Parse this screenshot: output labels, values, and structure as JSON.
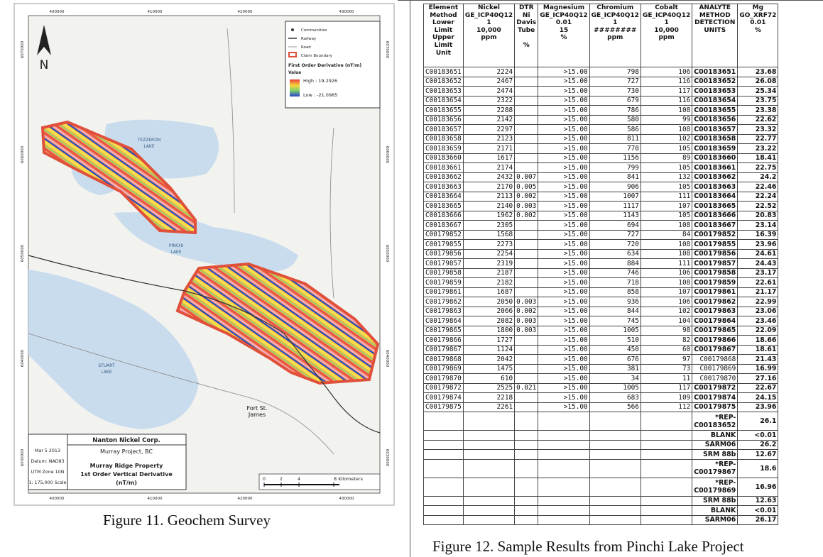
{
  "map": {
    "north": "N",
    "x_coords_top": [
      "400000",
      "410000",
      "420000",
      "430000"
    ],
    "x_coords_bottom": [
      "400000",
      "410000",
      "420000",
      "430000"
    ],
    "y_coords_left": [
      "6070000",
      "6060000",
      "6050000",
      "6040000",
      "6030000"
    ],
    "y_coords_right": [
      "6070000",
      "6060000",
      "6050000",
      "6040000",
      "6030000"
    ],
    "legend": {
      "items": [
        "Communities",
        "Railway",
        "Road",
        "Claim Boundary"
      ],
      "title": "First Order Derivative (nT/m)",
      "value": "Value",
      "high": "High : 19.2926",
      "low": "Low : -21.0985"
    },
    "lakes": {
      "tezzeron": [
        "TEZZERON",
        "LAKE"
      ],
      "pinchi": [
        "PINCHI",
        "LAKE"
      ],
      "stuart": [
        "STUART",
        "LAKE"
      ],
      "town": [
        "Fort St.",
        "James"
      ]
    },
    "title_block": {
      "company": "Nanton Nickel Corp.",
      "project": "Murray Project, BC",
      "property": "Murray Ridge Property",
      "product": "1st Order Vertical Derivative",
      "unit": "(nT/m)",
      "info": [
        "Mar 5 2013",
        "Datum: NAD83",
        "UTM Zone 10N",
        "1: 175,000 Scale"
      ]
    },
    "scale": [
      "0",
      "2",
      "4",
      "8 Kilometers"
    ]
  },
  "figure11_caption": "Figure 11. Geochem Survey",
  "table": {
    "header": [
      "Element\nMethod\nLower\nLimit\nUpper\nLimit\nUnit",
      "Nickel\nGE_ICP40Q12\n1\n10,000\nppm",
      "DTR\nNi\nDavis\nTube\n\n%",
      "Magnesium\nGE_ICP40Q12\n0.01\n15\n%",
      "Chromium\nGE_ICP40Q12\n1\n########\nppm",
      "Cobalt\nGE_ICP40Q12\n1\n10,000\nppm",
      "ANALYTE\nMETHOD\nDETECTION\nUNITS",
      "Mg\nGO_XRF72\n0.01\n%"
    ],
    "rows": [
      [
        "C00183651",
        "2224",
        "",
        ">15.00",
        "798",
        "106",
        "C00183651",
        "23.68"
      ],
      [
        "C00183652",
        "2467",
        "",
        ">15.00",
        "727",
        "116",
        "C00183652",
        "26.08"
      ],
      [
        "C00183653",
        "2474",
        "",
        ">15.00",
        "730",
        "117",
        "C00183653",
        "25.34"
      ],
      [
        "C00183654",
        "2322",
        "",
        ">15.00",
        "679",
        "116",
        "C00183654",
        "23.75"
      ],
      [
        "C00183655",
        "2288",
        "",
        ">15.00",
        "786",
        "108",
        "C00183655",
        "23.38"
      ],
      [
        "C00183656",
        "2142",
        "",
        ">15.00",
        "580",
        "99",
        "C00183656",
        "22.62"
      ],
      [
        "C00183657",
        "2297",
        "",
        ">15.00",
        "586",
        "108",
        "C00183657",
        "23.32"
      ],
      [
        "C00183658",
        "2123",
        "",
        ">15.00",
        "811",
        "102",
        "C00183658",
        "22.77"
      ],
      [
        "C00183659",
        "2171",
        "",
        ">15.00",
        "770",
        "105",
        "C00183659",
        "23.22"
      ],
      [
        "C00183660",
        "1617",
        "",
        ">15.00",
        "1156",
        "89",
        "C00183660",
        "18.41"
      ],
      [
        "C00183661",
        "2174",
        "",
        ">15.00",
        "799",
        "105",
        "C00183661",
        "22.75"
      ],
      [
        "C00183662",
        "2432",
        "0.007",
        ">15.00",
        "841",
        "132",
        "C00183662",
        "24.2"
      ],
      [
        "C00183663",
        "2170",
        "0.005",
        ">15.00",
        "906",
        "105",
        "C00183663",
        "22.46"
      ],
      [
        "C00183664",
        "2113",
        "0.002",
        ">15.00",
        "1007",
        "111",
        "C00183664",
        "22.24"
      ],
      [
        "C00183665",
        "2140",
        "0.003",
        ">15.00",
        "1117",
        "107",
        "C00183665",
        "22.52"
      ],
      [
        "C00183666",
        "1962",
        "0.002",
        ">15.00",
        "1143",
        "105",
        "C00183666",
        "20.83"
      ],
      [
        "C00183667",
        "2305",
        "",
        ">15.00",
        "694",
        "108",
        "C00183667",
        "23.14"
      ],
      [
        "C00179852",
        "1568",
        "",
        ">15.00",
        "727",
        "84",
        "C00179852",
        "16.39"
      ],
      [
        "C00179855",
        "2273",
        "",
        ">15.00",
        "720",
        "108",
        "C00179855",
        "23.96"
      ],
      [
        "C00179856",
        "2254",
        "",
        ">15.00",
        "634",
        "108",
        "C00179856",
        "24.61"
      ],
      [
        "C00179857",
        "2319",
        "",
        ">15.00",
        "884",
        "111",
        "C00179857",
        "24.43"
      ],
      [
        "C00179858",
        "2187",
        "",
        ">15.00",
        "746",
        "106",
        "C00179858",
        "23.17"
      ],
      [
        "C00179859",
        "2182",
        "",
        ">15.00",
        "718",
        "108",
        "C00179859",
        "22.61"
      ],
      [
        "C00179861",
        "1687",
        "",
        ">15.00",
        "858",
        "107",
        "C00179861",
        "21.17"
      ],
      [
        "C00179862",
        "2050",
        "0.003",
        ">15.00",
        "936",
        "106",
        "C00179862",
        "22.99"
      ],
      [
        "C00179863",
        "2066",
        "0.002",
        ">15.00",
        "844",
        "102",
        "C00179863",
        "23.06"
      ],
      [
        "C00179864",
        "2082",
        "0.003",
        ">15.00",
        "745",
        "104",
        "C00179864",
        "23.46"
      ],
      [
        "C00179865",
        "1800",
        "0.003",
        ">15.00",
        "1005",
        "98",
        "C00179865",
        "22.09"
      ],
      [
        "C00179866",
        "1727",
        "",
        ">15.00",
        "510",
        "82",
        "C00179866",
        "18.66"
      ],
      [
        "C00179867",
        "1124",
        "",
        ">15.00",
        "450",
        "60",
        "C00179867",
        "18.61"
      ],
      [
        "C00179868",
        "2042",
        "",
        ">15.00",
        "676",
        "97",
        "C00179868",
        "21.43"
      ],
      [
        "C00179869",
        "1475",
        "",
        ">15.00",
        "381",
        "73",
        "C00179869",
        "16.99"
      ],
      [
        "C00179870",
        "610",
        "",
        ">15.00",
        "34",
        "11",
        "C00179870",
        "27.16"
      ],
      [
        "C00179872",
        "2525",
        "0.021",
        ">15.00",
        "1005",
        "117",
        "C00179872",
        "22.67"
      ],
      [
        "C00179874",
        "2218",
        "",
        ">15.00",
        "683",
        "109",
        "C00179874",
        "24.15"
      ],
      [
        "C00179875",
        "2261",
        "",
        ">15.00",
        "566",
        "112",
        "C00179875",
        "23.96"
      ]
    ],
    "qc_rows": [
      [
        "*REP-C00183652",
        "26.1"
      ],
      [
        "BLANK",
        "<0.01"
      ],
      [
        "SARM06",
        "26.2"
      ],
      [
        "SRM 88b",
        "12.67"
      ],
      [
        "*REP-C00179867",
        "18.6"
      ],
      [
        "*REP-C00179869",
        "16.96"
      ],
      [
        "SRM 88b",
        "12.63"
      ],
      [
        "BLANK",
        "<0.01"
      ],
      [
        "SARM06",
        "26.17"
      ]
    ]
  },
  "figure12_caption": "Figure 12. Sample Results from Pinchi Lake Project"
}
